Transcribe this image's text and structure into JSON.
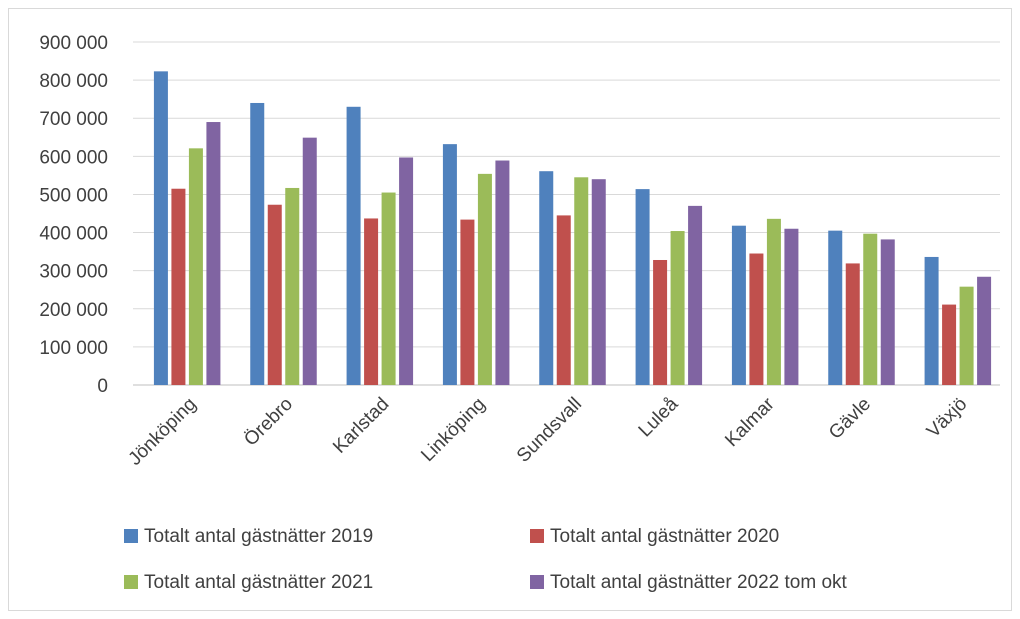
{
  "chart_data": {
    "type": "bar",
    "title": "",
    "xlabel": "",
    "ylabel": "",
    "ylim": [
      0,
      900000
    ],
    "yticks": [
      0,
      100000,
      200000,
      300000,
      400000,
      500000,
      600000,
      700000,
      800000,
      900000
    ],
    "ytick_labels": [
      "0",
      "100 000",
      "200 000",
      "300 000",
      "400 000",
      "500 000",
      "600 000",
      "700 000",
      "800 000",
      "900 000"
    ],
    "grid": true,
    "legend_position": "bottom",
    "categories": [
      "Jönköping",
      "Örebro",
      "Karlstad",
      "Linköping",
      "Sundsvall",
      "Luleå",
      "Kalmar",
      "Gävle",
      "Växjö"
    ],
    "series": [
      {
        "name": "Totalt antal gästnätter 2019",
        "color": "#4f81bd",
        "values": [
          823000,
          740000,
          730000,
          632000,
          561000,
          514000,
          418000,
          405000,
          336000
        ]
      },
      {
        "name": "Totalt antal gästnätter 2020",
        "color": "#c0504d",
        "values": [
          515000,
          473000,
          437000,
          434000,
          445000,
          328000,
          345000,
          319000,
          211000
        ]
      },
      {
        "name": "Totalt antal gästnätter 2021",
        "color": "#9bbb59",
        "values": [
          621000,
          517000,
          505000,
          554000,
          545000,
          404000,
          436000,
          397000,
          258000
        ]
      },
      {
        "name": "Totalt antal gästnätter 2022 tom okt",
        "color": "#8064a2",
        "values": [
          690000,
          649000,
          597000,
          589000,
          540000,
          470000,
          410000,
          382000,
          284000
        ]
      }
    ]
  }
}
